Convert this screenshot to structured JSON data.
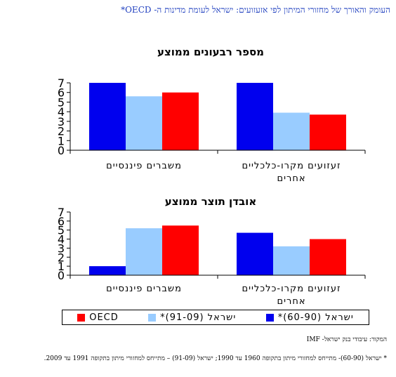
{
  "header": {
    "title": "העומק והאורך של מחזורי המיתון לפי אזעזועים: ישראל לעומת מדינות ה- OECD*"
  },
  "colors": {
    "israel_60_90": "#0000ee",
    "israel_91_09": "#99ccff",
    "oecd": "#ff0000"
  },
  "legend": [
    {
      "label": "ישראל (60-90)*",
      "color": "#0000ee"
    },
    {
      "label": "ישראל (91-09)*",
      "color": "#99ccff"
    },
    {
      "label": "OECD",
      "color": "#ff0000"
    }
  ],
  "chart_data": [
    {
      "type": "bar",
      "title": "מספר רבעונים ממוצע",
      "categories": [
        "משברים פיננסיים",
        "זעזועים מקרו-כלכליים אחרים"
      ],
      "category_lines": [
        [
          "משברים פיננסיים"
        ],
        [
          "זעזועים מקרו-כלכליים",
          "אחרים"
        ]
      ],
      "ylim": [
        0,
        7
      ],
      "yticks": [
        0,
        1,
        2,
        3,
        4,
        5,
        6,
        7
      ],
      "grid": false,
      "series": [
        {
          "name": "ישראל (60-90)*",
          "values": [
            7.0,
            7.0
          ]
        },
        {
          "name": "ישראל (91-09)*",
          "values": [
            5.6,
            3.9
          ]
        },
        {
          "name": "OECD",
          "values": [
            6.0,
            3.7
          ]
        }
      ]
    },
    {
      "type": "bar",
      "title": "אובדן תוצר ממוצע",
      "categories": [
        "משברים פיננסיים",
        "זעזועים מקרו-כלכליים אחרים"
      ],
      "category_lines": [
        [
          "משברים פיננסיים"
        ],
        [
          "זעזועים מקרו-כלכליים",
          "אחרים"
        ]
      ],
      "ylim": [
        0,
        7
      ],
      "yticks": [
        0,
        1,
        2,
        3,
        4,
        5,
        6,
        7
      ],
      "grid": false,
      "series": [
        {
          "name": "ישראל (60-90)*",
          "values": [
            1.0,
            4.7
          ]
        },
        {
          "name": "ישראל (91-09)*",
          "values": [
            5.2,
            3.2
          ]
        },
        {
          "name": "OECD",
          "values": [
            5.5,
            4.0
          ]
        }
      ]
    }
  ],
  "source": "המקור: עיבודי בנק ישראל- IMF",
  "footnote": "* ישראל (60-90)- מתייחס למחזורי מיתון בתקופה 1960 עד 1990; ישראל (91-09) – מתייחס למחזורי מיתון בתקופה 1991 עד 2009."
}
